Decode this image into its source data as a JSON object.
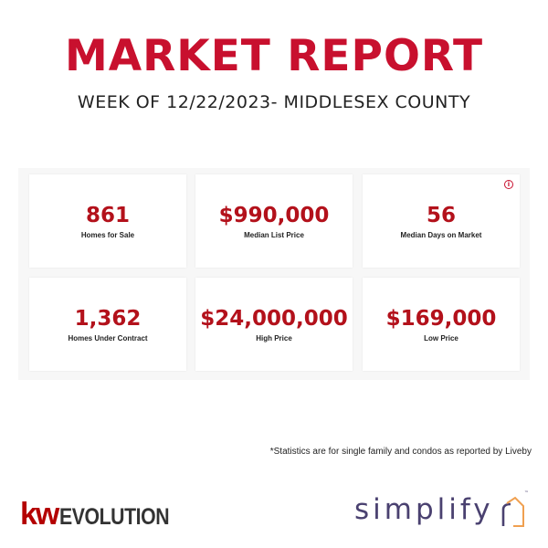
{
  "header": {
    "title": "MARKET REPORT",
    "subtitle": "WEEK OF 12/22/2023- MIDDLESEX COUNTY"
  },
  "stats": [
    {
      "value": "861",
      "label": "Homes for Sale"
    },
    {
      "value": "$990,000",
      "label": "Median List Price"
    },
    {
      "value": "56",
      "label": "Median Days on Market"
    },
    {
      "value": "1,362",
      "label": "Homes Under Contract"
    },
    {
      "value": "$24,000,000",
      "label": "High Price"
    },
    {
      "value": "$169,000",
      "label": "Low Price"
    }
  ],
  "info_icon": {
    "icon": "info-icon",
    "glyph": "i"
  },
  "footnote": "*Statistics are for single family and condos as reported by Liveby",
  "logos": {
    "kw_mark": "kw",
    "kw_word": "EVOLUTION",
    "simplifyr": "simplify"
  },
  "colors": {
    "title_red": "#c8102e",
    "value_red": "#b3111b",
    "kw_red": "#b40101",
    "simplifyr_purple": "#4a4170",
    "simplifyr_orange": "#f0a050"
  }
}
